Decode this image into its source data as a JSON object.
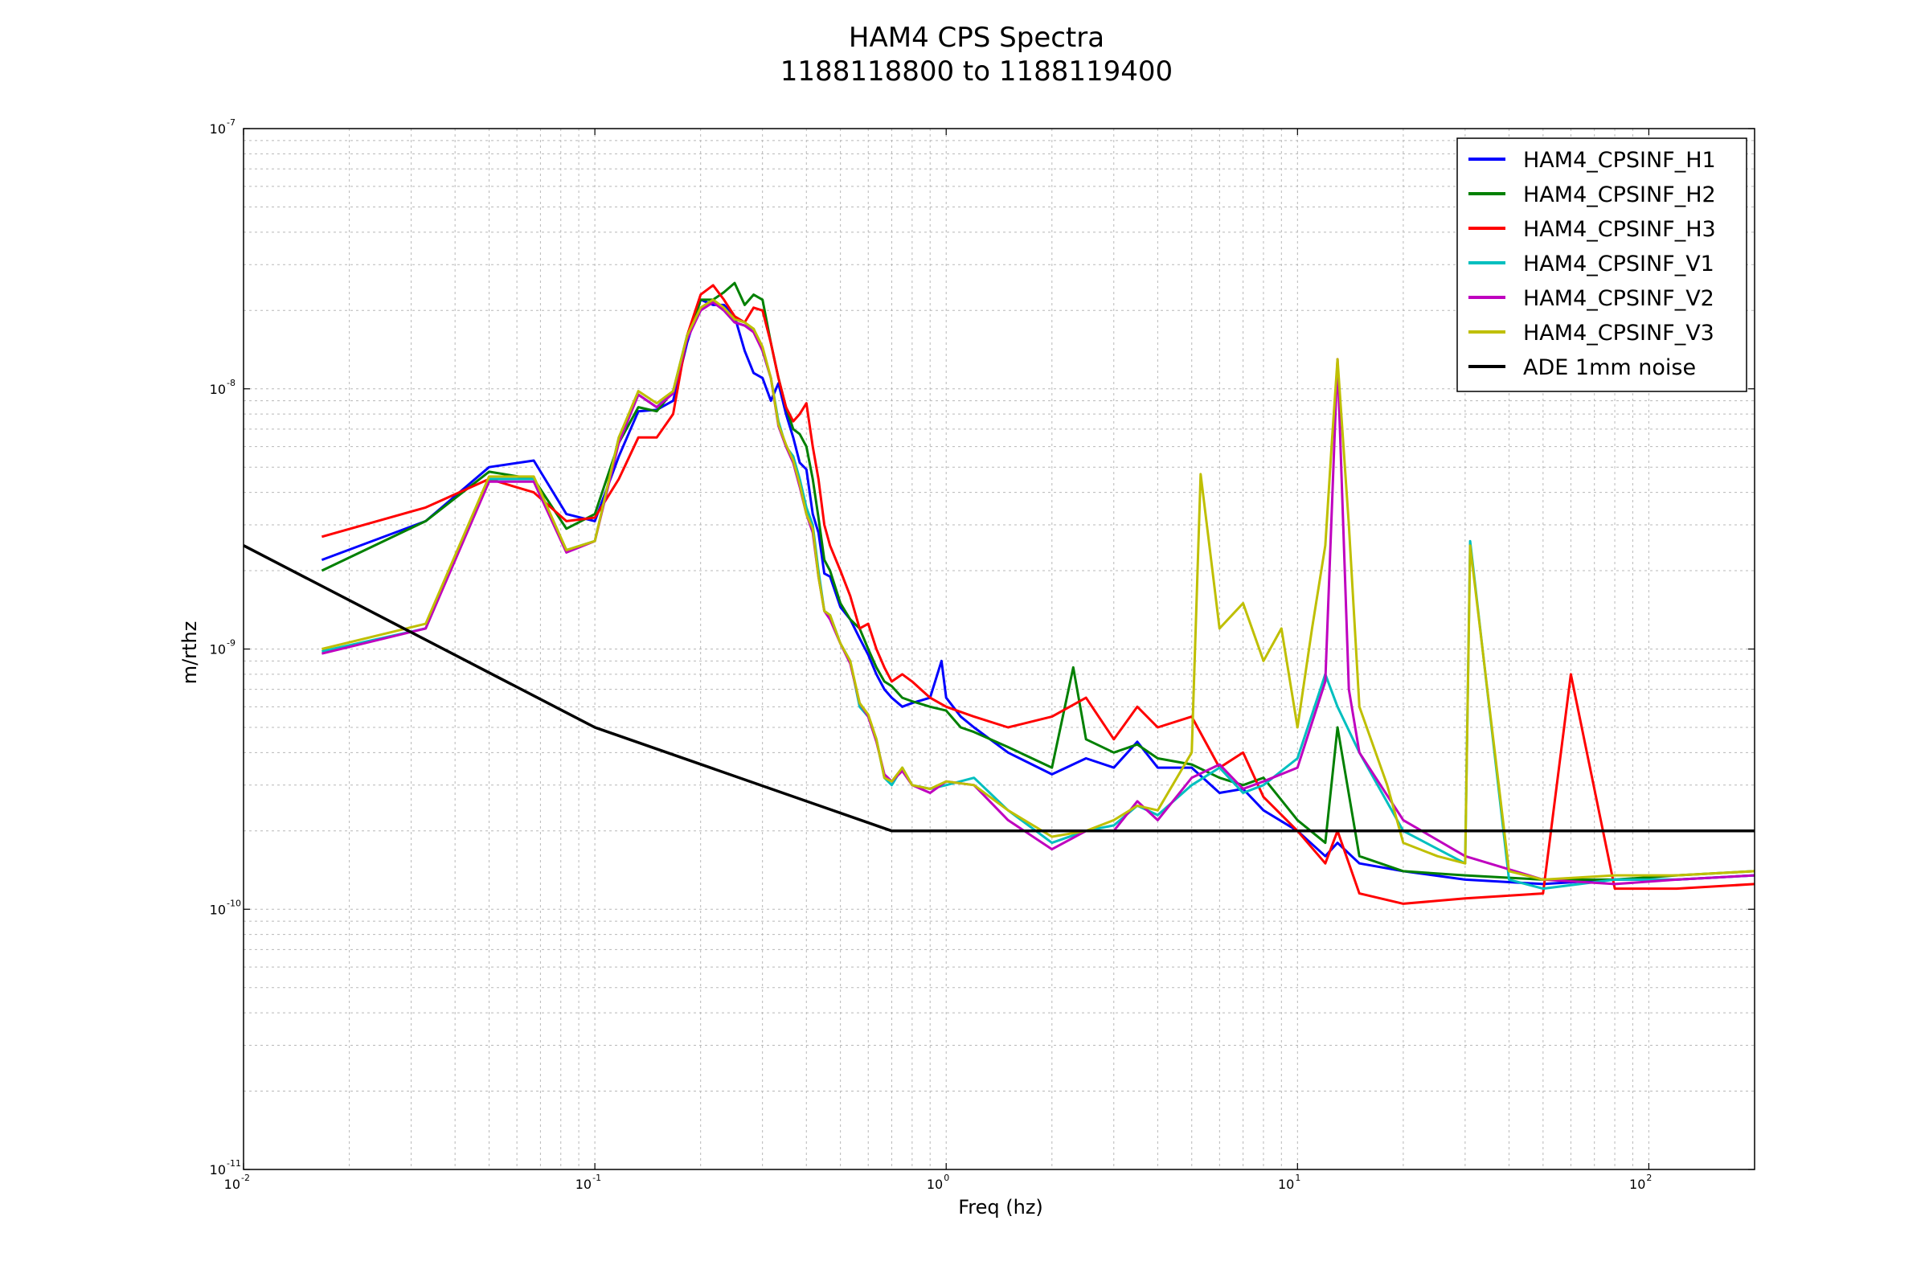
{
  "chart_data": {
    "type": "line",
    "title": "HAM4 CPS Spectra",
    "subtitle": "1188118800 to 1188119400",
    "xlabel": "Freq (hz)",
    "ylabel": "m/rthz",
    "xscale": "log",
    "yscale": "log",
    "xlim": [
      0.01,
      200
    ],
    "ylim": [
      1e-11,
      1e-07
    ],
    "grid": true,
    "legend_position": "top-right",
    "x_ticks": [
      {
        "base": "10",
        "exp": "-2",
        "value": 0.01
      },
      {
        "base": "10",
        "exp": "-1",
        "value": 0.1
      },
      {
        "base": "10",
        "exp": "0",
        "value": 1
      },
      {
        "base": "10",
        "exp": "1",
        "value": 10
      },
      {
        "base": "10",
        "exp": "2",
        "value": 100
      }
    ],
    "y_ticks": [
      {
        "base": "10",
        "exp": "-11",
        "value": 1e-11
      },
      {
        "base": "10",
        "exp": "-10",
        "value": 1e-10
      },
      {
        "base": "10",
        "exp": "-9",
        "value": 1e-09
      },
      {
        "base": "10",
        "exp": "-8",
        "value": 1e-08
      },
      {
        "base": "10",
        "exp": "-7",
        "value": 1e-07
      }
    ],
    "series": [
      {
        "name": "HAM4_CPSINF_H1",
        "color": "#0000ff",
        "key": "h1",
        "x": [
          0.0167,
          0.033,
          0.05,
          0.067,
          0.083,
          0.1,
          0.117,
          0.133,
          0.15,
          0.167,
          0.183,
          0.2,
          0.217,
          0.233,
          0.25,
          0.267,
          0.283,
          0.3,
          0.317,
          0.333,
          0.35,
          0.367,
          0.383,
          0.4,
          0.417,
          0.433,
          0.45,
          0.467,
          0.5,
          0.533,
          0.567,
          0.6,
          0.633,
          0.667,
          0.7,
          0.75,
          0.8,
          0.9,
          0.97,
          1.0,
          1.1,
          1.2,
          1.5,
          2,
          2.5,
          3,
          3.5,
          4,
          5,
          6,
          7,
          8,
          10,
          12,
          13,
          15,
          20,
          30,
          50,
          80,
          120,
          200
        ],
        "y": [
          2.2e-09,
          3.1e-09,
          5e-09,
          5.3e-09,
          3.3e-09,
          3.1e-09,
          5.5e-09,
          8.2e-09,
          8.3e-09,
          9e-09,
          1.5e-08,
          2.2e-08,
          2.1e-08,
          2.1e-08,
          1.9e-08,
          1.4e-08,
          1.15e-08,
          1.1e-08,
          9e-09,
          1.05e-08,
          8e-09,
          6.5e-09,
          5.2e-09,
          4.9e-09,
          3.3e-09,
          2.8e-09,
          1.95e-09,
          1.9e-09,
          1.45e-09,
          1.3e-09,
          1.1e-09,
          9.5e-10,
          8e-10,
          7e-10,
          6.5e-10,
          6e-10,
          6.2e-10,
          6.5e-10,
          9e-10,
          6.5e-10,
          5.5e-10,
          5e-10,
          4e-10,
          3.3e-10,
          3.8e-10,
          3.5e-10,
          4.4e-10,
          3.5e-10,
          3.5e-10,
          2.8e-10,
          2.9e-10,
          2.4e-10,
          2e-10,
          1.6e-10,
          1.8e-10,
          1.5e-10,
          1.4e-10,
          1.3e-10,
          1.25e-10,
          1.3e-10,
          1.3e-10,
          1.35e-10
        ]
      },
      {
        "name": "HAM4_CPSINF_H2",
        "color": "#008000",
        "key": "h2",
        "x": [
          0.0167,
          0.033,
          0.05,
          0.067,
          0.083,
          0.1,
          0.117,
          0.133,
          0.15,
          0.167,
          0.183,
          0.2,
          0.217,
          0.233,
          0.25,
          0.267,
          0.283,
          0.3,
          0.317,
          0.333,
          0.35,
          0.367,
          0.383,
          0.4,
          0.417,
          0.433,
          0.45,
          0.467,
          0.5,
          0.533,
          0.567,
          0.6,
          0.633,
          0.667,
          0.7,
          0.75,
          0.8,
          0.9,
          1.0,
          1.1,
          1.2,
          1.5,
          2,
          2.3,
          2.5,
          3,
          3.5,
          4,
          5,
          6,
          7,
          8,
          10,
          12,
          13,
          15,
          20,
          30,
          50,
          80,
          120,
          200
        ],
        "y": [
          2e-09,
          3.1e-09,
          4.8e-09,
          4.5e-09,
          2.9e-09,
          3.3e-09,
          6.2e-09,
          8.5e-09,
          8.2e-09,
          9.8e-09,
          1.55e-08,
          2.2e-08,
          2.2e-08,
          2.35e-08,
          2.55e-08,
          2.1e-08,
          2.3e-08,
          2.2e-08,
          1.5e-08,
          1.1e-08,
          8.5e-09,
          7e-09,
          6.7e-09,
          6e-09,
          4.5e-09,
          3.2e-09,
          2.2e-09,
          2e-09,
          1.5e-09,
          1.3e-09,
          1.2e-09,
          1e-09,
          8.5e-10,
          7.5e-10,
          7.2e-10,
          6.5e-10,
          6.3e-10,
          6e-10,
          5.8e-10,
          5e-10,
          4.8e-10,
          4.2e-10,
          3.5e-10,
          8.5e-10,
          4.5e-10,
          4e-10,
          4.3e-10,
          3.8e-10,
          3.6e-10,
          3.2e-10,
          3e-10,
          3.2e-10,
          2.2e-10,
          1.8e-10,
          5e-10,
          1.6e-10,
          1.4e-10,
          1.35e-10,
          1.3e-10,
          1.3e-10,
          1.35e-10,
          1.4e-10
        ]
      },
      {
        "name": "HAM4_CPSINF_H3",
        "color": "#ff0000",
        "key": "h3",
        "x": [
          0.0167,
          0.033,
          0.05,
          0.067,
          0.083,
          0.1,
          0.117,
          0.133,
          0.15,
          0.167,
          0.183,
          0.2,
          0.217,
          0.233,
          0.25,
          0.267,
          0.283,
          0.3,
          0.317,
          0.333,
          0.35,
          0.367,
          0.383,
          0.4,
          0.417,
          0.433,
          0.45,
          0.467,
          0.5,
          0.533,
          0.567,
          0.6,
          0.633,
          0.667,
          0.7,
          0.75,
          0.8,
          0.9,
          1.0,
          1.2,
          1.5,
          2,
          2.5,
          3,
          3.5,
          4,
          5,
          6,
          7,
          8,
          10,
          12,
          13,
          15,
          20,
          30,
          50,
          60,
          80,
          120,
          200
        ],
        "y": [
          2.7e-09,
          3.5e-09,
          4.5e-09,
          4e-09,
          3.1e-09,
          3.2e-09,
          4.5e-09,
          6.5e-09,
          6.5e-09,
          8e-09,
          1.6e-08,
          2.3e-08,
          2.5e-08,
          2.2e-08,
          1.9e-08,
          1.8e-08,
          2.05e-08,
          2e-08,
          1.5e-08,
          1.1e-08,
          8.5e-09,
          7.5e-09,
          8e-09,
          8.8e-09,
          6e-09,
          4.5e-09,
          3e-09,
          2.5e-09,
          2e-09,
          1.6e-09,
          1.2e-09,
          1.25e-09,
          1e-09,
          8.5e-10,
          7.5e-10,
          8e-10,
          7.5e-10,
          6.5e-10,
          6e-10,
          5.5e-10,
          5e-10,
          5.5e-10,
          6.5e-10,
          4.5e-10,
          6e-10,
          5e-10,
          5.5e-10,
          3.5e-10,
          4e-10,
          2.7e-10,
          2e-10,
          1.5e-10,
          2e-10,
          1.15e-10,
          1.05e-10,
          1.1e-10,
          1.15e-10,
          8e-10,
          1.2e-10,
          1.2e-10,
          1.25e-10
        ]
      },
      {
        "name": "HAM4_CPSINF_V1",
        "color": "#00bfbf",
        "key": "v1",
        "x": [
          0.0167,
          0.033,
          0.05,
          0.067,
          0.083,
          0.1,
          0.117,
          0.133,
          0.15,
          0.167,
          0.183,
          0.2,
          0.217,
          0.233,
          0.25,
          0.267,
          0.283,
          0.3,
          0.317,
          0.333,
          0.35,
          0.367,
          0.383,
          0.4,
          0.417,
          0.433,
          0.45,
          0.467,
          0.5,
          0.533,
          0.567,
          0.6,
          0.633,
          0.667,
          0.7,
          0.75,
          0.8,
          0.9,
          1.0,
          1.2,
          1.5,
          2,
          2.5,
          3,
          3.5,
          4,
          5,
          6,
          7,
          8,
          10,
          12,
          13,
          15,
          20,
          30,
          31,
          40,
          50,
          80,
          120,
          200
        ],
        "y": [
          9.8e-10,
          1.2e-09,
          4.5e-09,
          4.5e-09,
          2.4e-09,
          2.6e-09,
          6.5e-09,
          9.5e-09,
          8.5e-09,
          9.8e-09,
          1.6e-08,
          2e-08,
          2.2e-08,
          2e-08,
          1.8e-08,
          1.75e-08,
          1.7e-08,
          1.4e-08,
          1.1e-08,
          7.5e-09,
          6e-09,
          5.5e-09,
          4.5e-09,
          3.5e-09,
          3e-09,
          2e-09,
          1.4e-09,
          1.35e-09,
          1.05e-09,
          9e-10,
          6e-10,
          5.5e-10,
          4.5e-10,
          3.2e-10,
          3e-10,
          3.5e-10,
          3e-10,
          2.9e-10,
          3e-10,
          3.2e-10,
          2.4e-10,
          1.8e-10,
          2e-10,
          2.1e-10,
          2.5e-10,
          2.3e-10,
          3e-10,
          3.5e-10,
          2.8e-10,
          3e-10,
          3.8e-10,
          8e-10,
          6e-10,
          4e-10,
          2e-10,
          1.5e-10,
          2.6e-09,
          1.3e-10,
          1.2e-10,
          1.3e-10,
          1.3e-10,
          1.35e-10
        ]
      },
      {
        "name": "HAM4_CPSINF_V2",
        "color": "#bf00bf",
        "key": "v2",
        "x": [
          0.0167,
          0.033,
          0.05,
          0.067,
          0.083,
          0.1,
          0.117,
          0.133,
          0.15,
          0.167,
          0.183,
          0.2,
          0.217,
          0.233,
          0.25,
          0.267,
          0.283,
          0.3,
          0.317,
          0.333,
          0.35,
          0.367,
          0.383,
          0.4,
          0.417,
          0.433,
          0.45,
          0.467,
          0.5,
          0.533,
          0.567,
          0.6,
          0.633,
          0.667,
          0.7,
          0.75,
          0.8,
          0.9,
          1.0,
          1.2,
          1.5,
          2,
          2.5,
          3,
          3.5,
          4,
          5,
          6,
          7,
          8,
          10,
          12,
          13,
          14,
          15,
          20,
          30,
          50,
          80,
          120,
          200
        ],
        "y": [
          9.6e-10,
          1.2e-09,
          4.4e-09,
          4.4e-09,
          2.35e-09,
          2.6e-09,
          6.2e-09,
          9.5e-09,
          8.5e-09,
          9.6e-09,
          1.55e-08,
          2e-08,
          2.15e-08,
          2e-08,
          1.8e-08,
          1.75e-08,
          1.65e-08,
          1.4e-08,
          1.1e-08,
          7.2e-09,
          6e-09,
          5.2e-09,
          4.2e-09,
          3.3e-09,
          2.8e-09,
          1.9e-09,
          1.4e-09,
          1.3e-09,
          1.05e-09,
          8.8e-10,
          6.2e-10,
          5.5e-10,
          4.4e-10,
          3.3e-10,
          3.1e-10,
          3.4e-10,
          3e-10,
          2.8e-10,
          3.1e-10,
          3e-10,
          2.2e-10,
          1.7e-10,
          2e-10,
          2e-10,
          2.6e-10,
          2.2e-10,
          3.2e-10,
          3.6e-10,
          2.9e-10,
          3.1e-10,
          3.5e-10,
          7.5e-10,
          1.3e-08,
          7e-10,
          4e-10,
          2.2e-10,
          1.6e-10,
          1.3e-10,
          1.25e-10,
          1.3e-10,
          1.35e-10
        ]
      },
      {
        "name": "HAM4_CPSINF_V3",
        "color": "#bfbf00",
        "key": "v3",
        "x": [
          0.0167,
          0.033,
          0.05,
          0.067,
          0.083,
          0.1,
          0.117,
          0.133,
          0.15,
          0.167,
          0.183,
          0.2,
          0.217,
          0.233,
          0.25,
          0.267,
          0.283,
          0.3,
          0.317,
          0.333,
          0.35,
          0.367,
          0.383,
          0.4,
          0.417,
          0.433,
          0.45,
          0.467,
          0.5,
          0.533,
          0.567,
          0.6,
          0.633,
          0.667,
          0.7,
          0.75,
          0.8,
          0.9,
          1.0,
          1.2,
          1.5,
          2,
          2.5,
          3,
          3.5,
          4,
          5,
          5.3,
          6,
          7,
          8,
          9,
          10,
          11,
          12,
          12.5,
          13,
          14,
          15,
          18,
          20,
          25,
          30,
          31,
          40,
          50,
          80,
          120,
          200
        ],
        "y": [
          1e-09,
          1.25e-09,
          4.6e-09,
          4.6e-09,
          2.4e-09,
          2.6e-09,
          6.5e-09,
          9.8e-09,
          8.8e-09,
          9.8e-09,
          1.6e-08,
          2.05e-08,
          2.2e-08,
          2.05e-08,
          1.85e-08,
          1.8e-08,
          1.7e-08,
          1.45e-08,
          1.1e-08,
          7.3e-09,
          6.1e-09,
          5.3e-09,
          4.3e-09,
          3.3e-09,
          2.9e-09,
          1.9e-09,
          1.4e-09,
          1.35e-09,
          1.05e-09,
          9e-10,
          6.2e-10,
          5.6e-10,
          4.5e-10,
          3.2e-10,
          3.1e-10,
          3.5e-10,
          3e-10,
          2.9e-10,
          3.1e-10,
          3e-10,
          2.4e-10,
          1.9e-10,
          2e-10,
          2.2e-10,
          2.5e-10,
          2.4e-10,
          4e-10,
          4.7e-09,
          1.2e-09,
          1.5e-09,
          9e-10,
          1.2e-09,
          5e-10,
          1.2e-09,
          2.5e-09,
          6e-09,
          1.3e-08,
          3e-09,
          6e-10,
          3e-10,
          1.8e-10,
          1.6e-10,
          1.5e-10,
          2.5e-09,
          1.4e-10,
          1.3e-10,
          1.35e-10,
          1.35e-10,
          1.4e-10
        ]
      },
      {
        "name": "ADE 1mm noise",
        "color": "#000000",
        "key": "ade",
        "x": [
          0.01,
          0.1,
          0.7,
          200
        ],
        "y": [
          2.5e-09,
          5e-10,
          2e-10,
          2e-10
        ]
      }
    ]
  }
}
